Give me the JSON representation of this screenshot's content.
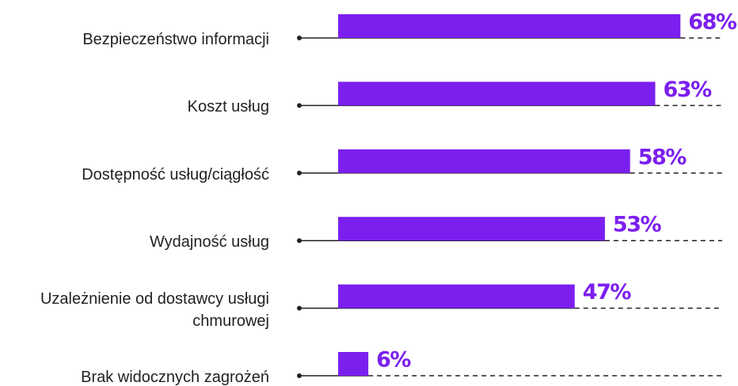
{
  "chart_data": {
    "type": "bar",
    "orientation": "horizontal",
    "categories": [
      "Bezpieczeństwo informacji",
      "Koszt usług",
      "Dostępność usług/ciągłość",
      "Wydajność usług",
      "Uzależnienie od dostawcy usługi chmurowej",
      "Brak widocznych zagrożeń"
    ],
    "values": [
      68,
      63,
      58,
      53,
      47,
      6
    ],
    "value_labels": [
      "68%",
      "63%",
      "58%",
      "53%",
      "47%",
      "6%"
    ],
    "color": "#7b1fef",
    "xlim": [
      0,
      70
    ]
  }
}
